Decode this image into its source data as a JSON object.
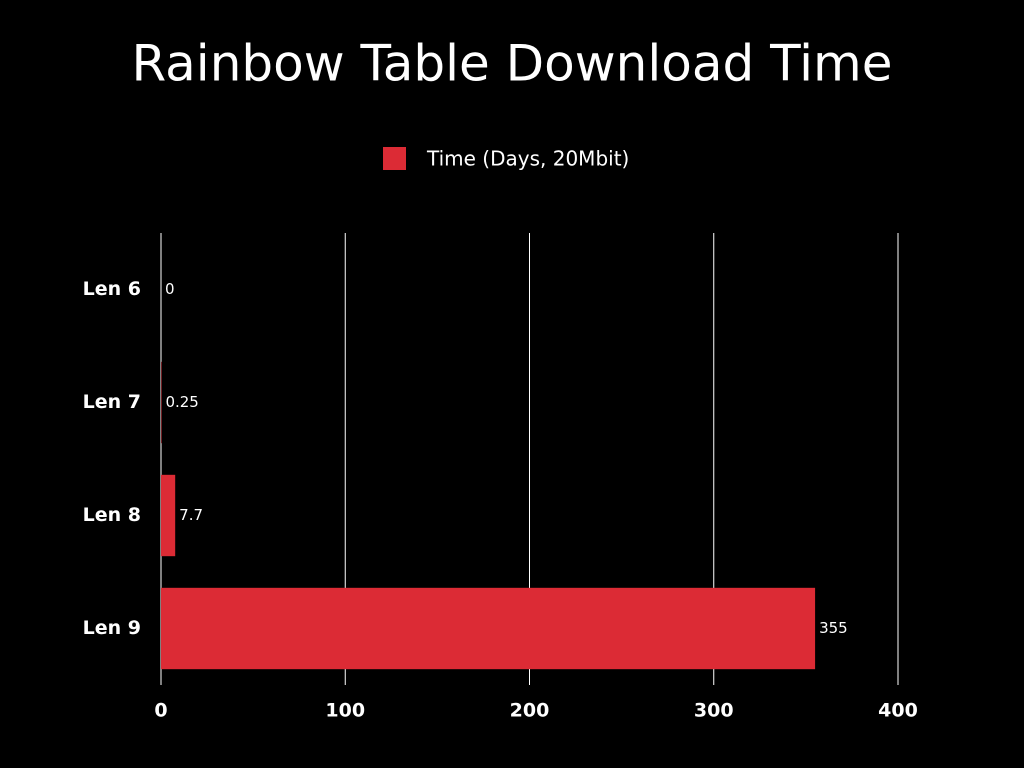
{
  "chart_data": {
    "type": "bar",
    "orientation": "horizontal",
    "title": "Rainbow Table Download Time",
    "categories": [
      "Len 6",
      "Len 7",
      "Len 8",
      "Len 9"
    ],
    "series": [
      {
        "name": "Time (Days, 20Mbit)",
        "color": "#dc2b35",
        "values": [
          0,
          0.25,
          7.7,
          355
        ]
      }
    ],
    "xlim": [
      0,
      400
    ],
    "xticks": [
      0,
      100,
      200,
      300,
      400
    ],
    "grid": true,
    "legend": "top"
  }
}
